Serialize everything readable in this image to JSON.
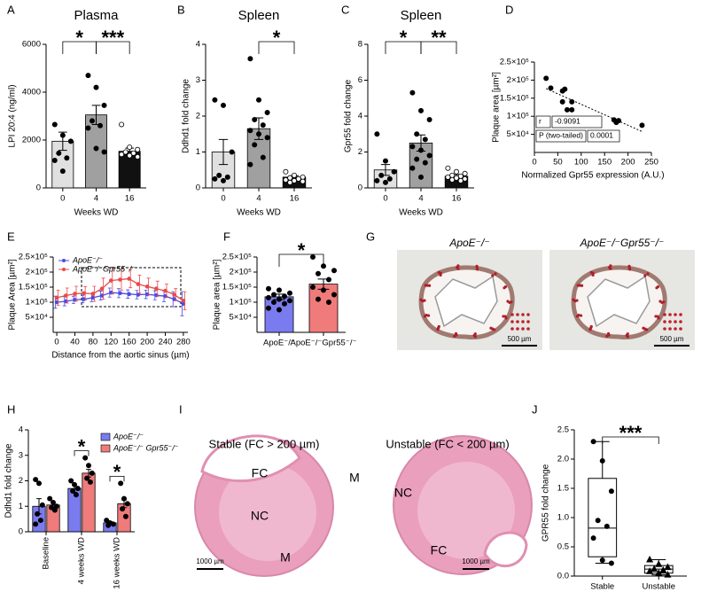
{
  "chart_data": [
    {
      "label": "A",
      "type": "bar",
      "title": "Plasma",
      "ylabel": "LPI 20:4 (ng/ml)",
      "xlabel": "Weeks WD",
      "categories": [
        "0",
        "4",
        "16"
      ],
      "values": [
        1950,
        3050,
        1530
      ],
      "errors": [
        380,
        400,
        130
      ],
      "colors": [
        "#e0e0e0",
        "#a0a0a0",
        "#111111"
      ],
      "point_fills": [
        "#000000",
        "#000000",
        "#ffffff"
      ],
      "points": [
        [
          2650,
          2200,
          1950,
          1450,
          1250,
          1150,
          700
        ],
        [
          4700,
          4200,
          3450,
          2800,
          2600,
          2500,
          1650,
          1500
        ],
        [
          2650,
          1700,
          1600,
          1500,
          1450,
          1400,
          1350,
          1300
        ]
      ],
      "ylim": [
        0,
        6000
      ],
      "yticks": [
        0,
        2000,
        4000,
        6000
      ],
      "significance": [
        {
          "pair": [
            "0",
            "4"
          ],
          "label": "*"
        },
        {
          "pair": [
            "4",
            "16"
          ],
          "label": "***"
        }
      ]
    },
    {
      "label": "B",
      "type": "bar",
      "title": "Spleen",
      "ylabel": "Ddhd1 fold change",
      "xlabel": "Weeks WD",
      "categories": [
        "0",
        "4",
        "16"
      ],
      "values": [
        1.0,
        1.65,
        0.3
      ],
      "errors": [
        0.35,
        0.3,
        0.04
      ],
      "colors": [
        "#e0e0e0",
        "#a0a0a0",
        "#111111"
      ],
      "point_fills": [
        "#000000",
        "#000000",
        "#ffffff"
      ],
      "points": [
        [
          2.45,
          2.3,
          1.0,
          0.35,
          0.3,
          0.25,
          0.2
        ],
        [
          3.6,
          2.45,
          2.1,
          1.9,
          1.75,
          1.6,
          1.5,
          1.4,
          1.2,
          0.85,
          0.65
        ],
        [
          0.45,
          0.35,
          0.3,
          0.28,
          0.25,
          0.22,
          0.2,
          0.18,
          0.15
        ]
      ],
      "ylim": [
        0,
        4
      ],
      "yticks": [
        0,
        1,
        2,
        3,
        4
      ],
      "significance": [
        {
          "pair": [
            "4",
            "16"
          ],
          "label": "*"
        }
      ]
    },
    {
      "label": "C",
      "type": "bar",
      "title": "Spleen",
      "ylabel": "Gpr55 fold change",
      "xlabel": "Weeks WD",
      "categories": [
        "0",
        "4",
        "16"
      ],
      "values": [
        1.0,
        2.5,
        0.65
      ],
      "errors": [
        0.3,
        0.45,
        0.1
      ],
      "colors": [
        "#e0e0e0",
        "#a0a0a0",
        "#111111"
      ],
      "point_fills": [
        "#000000",
        "#000000",
        "#ffffff"
      ],
      "points": [
        [
          3.0,
          1.5,
          0.9,
          0.7,
          0.5,
          0.4,
          0.3
        ],
        [
          5.3,
          4.3,
          3.8,
          3.0,
          2.7,
          2.3,
          2.1,
          1.8,
          1.6,
          1.4,
          1.1,
          0.6
        ],
        [
          1.1,
          0.9,
          0.8,
          0.7,
          0.65,
          0.6,
          0.55,
          0.5,
          0.45,
          0.4
        ]
      ],
      "ylim": [
        0,
        8
      ],
      "yticks": [
        0,
        2,
        4,
        6,
        8
      ],
      "significance": [
        {
          "pair": [
            "0",
            "4"
          ],
          "label": "*"
        },
        {
          "pair": [
            "4",
            "16"
          ],
          "label": "**"
        }
      ]
    },
    {
      "label": "D",
      "type": "scatter",
      "ylabel": "Plaque area [µm²]",
      "xlabel": "Normalized Gpr55 expression (A.U.)",
      "x": [
        25,
        35,
        60,
        65,
        60,
        70,
        80,
        80,
        170,
        175,
        180,
        230
      ],
      "y": [
        205000,
        178000,
        170000,
        175000,
        140000,
        118000,
        118000,
        140000,
        90000,
        83000,
        88000,
        75000
      ],
      "color": "#000000",
      "xlim": [
        0,
        250
      ],
      "xticks": [
        0,
        50,
        100,
        150,
        200,
        250
      ],
      "ylim": [
        0,
        250000
      ],
      "yticks": [
        {
          "value": 50000,
          "label": "5×10⁴"
        },
        {
          "value": 100000,
          "label": "1×10⁵"
        },
        {
          "value": 150000,
          "label": "1.5×10⁵"
        },
        {
          "value": 200000,
          "label": "2×10⁵"
        },
        {
          "value": 250000,
          "label": "2.5×10⁵"
        }
      ],
      "trendline": true,
      "stats_table": [
        [
          "r",
          "-0.9091"
        ],
        [
          "P (two-tailed)",
          "0.0001"
        ]
      ]
    },
    {
      "label": "E",
      "type": "line",
      "ylabel": "Plaque Area [µm²]",
      "xlabel": "Distance from the aortic sinus (µm)",
      "x": [
        0,
        20,
        40,
        60,
        80,
        100,
        120,
        140,
        160,
        180,
        200,
        220,
        240,
        260,
        280
      ],
      "series": [
        {
          "name": "ApoE⁻/⁻",
          "color": "#4a4ae8",
          "values": [
            100000,
            103000,
            108000,
            110000,
            115000,
            122000,
            132000,
            130000,
            127000,
            125000,
            126000,
            123000,
            120000,
            110000,
            95000
          ],
          "errors": [
            20000,
            15000,
            12000,
            12000,
            13000,
            15000,
            15000,
            15000,
            14000,
            14000,
            14000,
            15000,
            18000,
            25000,
            40000
          ]
        },
        {
          "name": "ApoE⁻/⁻Gpr55⁻/⁻",
          "color": "#e84a4a",
          "values": [
            115000,
            122000,
            128000,
            130000,
            128000,
            145000,
            172000,
            175000,
            178000,
            160000,
            152000,
            145000,
            138000,
            125000,
            105000
          ],
          "errors": [
            25000,
            25000,
            25000,
            22000,
            25000,
            35000,
            45000,
            35000,
            30000,
            30000,
            28000,
            25000,
            22000,
            20000,
            30000
          ]
        }
      ],
      "xlim": [
        -8,
        290
      ],
      "xticks": [
        0,
        40,
        80,
        120,
        160,
        200,
        240,
        280
      ],
      "ylim": [
        0,
        250000
      ],
      "yticks": [
        {
          "value": 50000,
          "label": "5×10⁴"
        },
        {
          "value": 100000,
          "label": "1×10⁵"
        },
        {
          "value": 150000,
          "label": "1.5×10⁵"
        },
        {
          "value": 200000,
          "label": "2×10⁵"
        },
        {
          "value": 250000,
          "label": "2.5×10⁵"
        }
      ],
      "legend": "upper left"
    },
    {
      "label": "F",
      "type": "bar",
      "ylabel": "Plaque area [µm²]",
      "categories": [
        "ApoE⁻/⁻",
        "ApoE⁻/⁻Gpr55⁻/⁻"
      ],
      "values": [
        118000,
        160000
      ],
      "errors": [
        9000,
        17000
      ],
      "colors": [
        "#7b7bf0",
        "#f07b7b"
      ],
      "point_fills": [
        "#000000",
        "#000000"
      ],
      "points": [
        [
          145000,
          140000,
          130000,
          125000,
          120000,
          115000,
          110000,
          105000,
          100000,
          95000,
          80000,
          75000
        ],
        [
          250000,
          220000,
          205000,
          195000,
          175000,
          150000,
          140000,
          125000,
          110000,
          100000
        ]
      ],
      "ylim": [
        0,
        250000
      ],
      "yticks": [
        {
          "value": 50000,
          "label": "5×10⁴"
        },
        {
          "value": 100000,
          "label": "1×10⁵"
        },
        {
          "value": 150000,
          "label": "1.5×10⁵"
        },
        {
          "value": 200000,
          "label": "2×10⁵"
        },
        {
          "value": 250000,
          "label": "2.5×10⁵"
        }
      ],
      "significance": [
        {
          "pair": [
            "ApoE⁻/⁻",
            "ApoE⁻/⁻Gpr55⁻/⁻"
          ],
          "label": "*"
        }
      ]
    },
    {
      "label": "H",
      "type": "bar",
      "ylabel": "Ddhd1 fold change",
      "categories": [
        "Baseline",
        "4 weeks WD",
        "16 weeks WD"
      ],
      "series": [
        {
          "name": "ApoE⁻/⁻",
          "color": "#7b7bf0",
          "values": [
            1.0,
            1.7,
            0.35
          ],
          "errors": [
            0.3,
            0.15,
            0.05
          ],
          "points": [
            [
              2.05,
              1.9,
              1.05,
              0.7,
              0.45,
              0.3
            ],
            [
              2.0,
              1.85,
              1.7,
              1.6,
              1.45
            ],
            [
              0.45,
              0.35,
              0.3,
              0.25
            ]
          ]
        },
        {
          "name": "ApoE⁻/⁻ Gpr55⁻/⁻",
          "color": "#f07b7b",
          "values": [
            1.05,
            2.3,
            1.1
          ],
          "errors": [
            0.1,
            0.15,
            0.15
          ],
          "points": [
            [
              1.3,
              1.15,
              1.0,
              0.95,
              0.85
            ],
            [
              2.9,
              2.6,
              2.3,
              2.1,
              1.95
            ],
            [
              1.9,
              1.3,
              1.1,
              0.9,
              0.6
            ]
          ]
        }
      ],
      "ylim": [
        0,
        4
      ],
      "yticks": [
        0,
        1,
        2,
        3,
        4
      ],
      "legend": "upper right",
      "significance": [
        {
          "category": "4 weeks WD",
          "label": "*"
        },
        {
          "category": "16 weeks WD",
          "label": "*"
        }
      ]
    },
    {
      "label": "J",
      "type": "box",
      "ylabel": "GPR55 fold change",
      "categories": [
        "Stable",
        "Unstable"
      ],
      "boxes": [
        {
          "min": 0.22,
          "q1": 0.33,
          "median": 0.82,
          "q3": 1.67,
          "max": 2.3
        },
        {
          "min": 0.02,
          "q1": 0.05,
          "median": 0.12,
          "q3": 0.18,
          "max": 0.28
        }
      ],
      "points": [
        [
          2.3,
          1.97,
          1.45,
          0.95,
          0.85,
          0.65,
          0.27,
          0.22
        ],
        [
          0.28,
          0.2,
          0.15,
          0.12,
          0.1,
          0.08,
          0.05,
          0.02
        ]
      ],
      "markers": [
        "circle",
        "triangle"
      ],
      "ylim": [
        0,
        2.5
      ],
      "yticks": [
        {
          "value": 0,
          "label": "0.0"
        },
        0.5,
        {
          "value": 1,
          "label": "1.0"
        },
        1.5,
        {
          "value": 2,
          "label": "2.0"
        },
        2.5
      ],
      "significance": [
        {
          "pair": [
            "Stable",
            "Unstable"
          ],
          "label": "***"
        }
      ]
    }
  ],
  "images": [
    {
      "label": "G",
      "titles": [
        "ApoE⁻/⁻",
        "ApoE⁻/⁻Gpr55⁻/⁻"
      ],
      "scale_bar": "500 µm"
    },
    {
      "label": "I",
      "titles": [
        "Stable  (FC > 200 µm)",
        "Unstable (FC < 200 µm)"
      ],
      "scale_bar": "1000 µm",
      "annotations": [
        [
          "FC",
          "NC",
          "M"
        ],
        [
          "M",
          "NC",
          "FC"
        ]
      ]
    }
  ]
}
